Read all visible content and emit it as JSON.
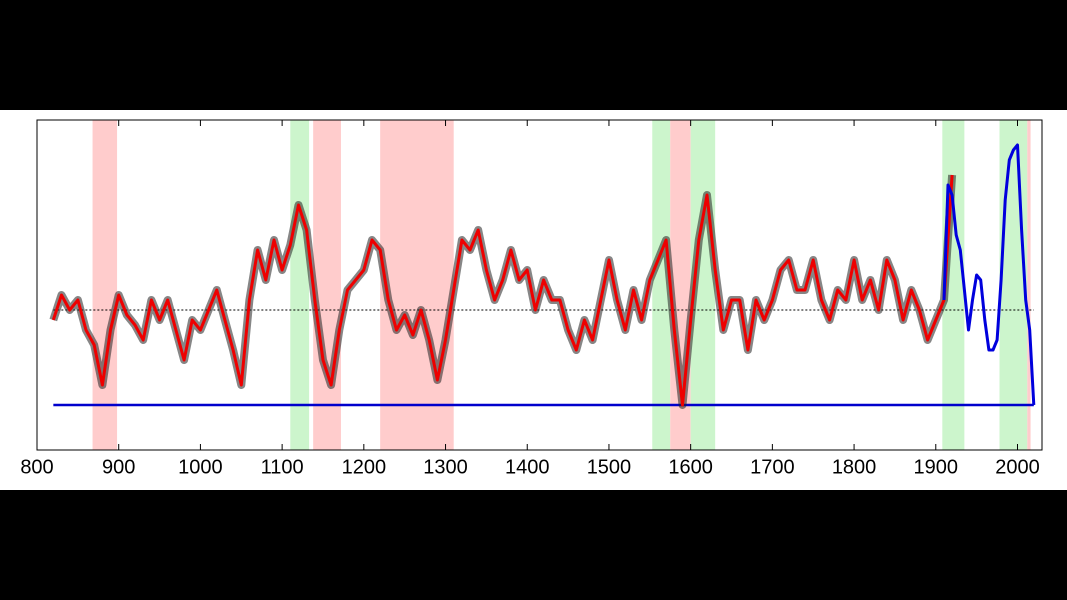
{
  "chart_data": {
    "type": "line",
    "xlim": [
      800,
      2030
    ],
    "ylim": [
      -2.8,
      3.8
    ],
    "xticks": [
      800,
      900,
      1000,
      1100,
      1200,
      1300,
      1400,
      1500,
      1600,
      1700,
      1800,
      1900,
      2000
    ],
    "spans": [
      {
        "start": 868,
        "end": 898,
        "color": "#ffcccc"
      },
      {
        "start": 1110,
        "end": 1133,
        "color": "#ccf5cc"
      },
      {
        "start": 1138,
        "end": 1172,
        "color": "#ffcccc"
      },
      {
        "start": 1220,
        "end": 1310,
        "color": "#ffcccc"
      },
      {
        "start": 1553,
        "end": 1575,
        "color": "#ccf5cc"
      },
      {
        "start": 1575,
        "end": 1600,
        "color": "#ffcccc"
      },
      {
        "start": 1600,
        "end": 1630,
        "color": "#ccf5cc"
      },
      {
        "start": 1908,
        "end": 1935,
        "color": "#ccf5cc"
      },
      {
        "start": 1978,
        "end": 2012,
        "color": "#ccf5cc"
      },
      {
        "start": 2012,
        "end": 2016,
        "color": "#ffcccc"
      }
    ],
    "hlines": [
      {
        "value": 0,
        "color": "#000000",
        "dashed": true
      },
      {
        "value": -1.9,
        "color": "#0000cc",
        "dashed": false
      }
    ],
    "series": [
      {
        "color": "#ee0000",
        "band": "#222222",
        "x": [
          820,
          830,
          840,
          850,
          860,
          870,
          880,
          890,
          900,
          910,
          920,
          930,
          940,
          950,
          960,
          970,
          980,
          990,
          1000,
          1010,
          1020,
          1030,
          1040,
          1050,
          1060,
          1070,
          1080,
          1090,
          1100,
          1110,
          1120,
          1130,
          1140,
          1150,
          1160,
          1170,
          1180,
          1190,
          1200,
          1210,
          1220,
          1230,
          1240,
          1250,
          1260,
          1270,
          1280,
          1290,
          1300,
          1310,
          1320,
          1330,
          1340,
          1350,
          1360,
          1370,
          1380,
          1390,
          1400,
          1410,
          1420,
          1430,
          1440,
          1450,
          1460,
          1470,
          1480,
          1490,
          1500,
          1510,
          1520,
          1530,
          1540,
          1550,
          1560,
          1570,
          1580,
          1590,
          1600,
          1610,
          1620,
          1630,
          1640,
          1650,
          1660,
          1670,
          1680,
          1690,
          1700,
          1710,
          1720,
          1730,
          1740,
          1750,
          1760,
          1770,
          1780,
          1790,
          1800,
          1810,
          1820,
          1830,
          1840,
          1850,
          1860,
          1870,
          1880,
          1890,
          1900,
          1910,
          1920
        ],
        "values": [
          -0.2,
          0.3,
          0,
          0.2,
          -0.4,
          -0.7,
          -1.5,
          -0.4,
          0.3,
          -0.1,
          -0.3,
          -0.6,
          0.2,
          -0.2,
          0.2,
          -0.4,
          -1.0,
          -0.2,
          -0.4,
          0,
          0.4,
          -0.2,
          -0.8,
          -1.5,
          0.2,
          1.2,
          0.6,
          1.4,
          0.8,
          1.3,
          2.1,
          1.6,
          0.2,
          -1.0,
          -1.5,
          -0.4,
          0.4,
          0.6,
          0.8,
          1.4,
          1.2,
          0.2,
          -0.4,
          -0.1,
          -0.5,
          0,
          -0.6,
          -1.4,
          -0.6,
          0.4,
          1.4,
          1.2,
          1.6,
          0.8,
          0.2,
          0.6,
          1.2,
          0.6,
          0.8,
          0,
          0.6,
          0.2,
          0.2,
          -0.4,
          -0.8,
          -0.2,
          -0.6,
          0.2,
          1.0,
          0.2,
          -0.4,
          0.4,
          -0.2,
          0.6,
          1.0,
          1.4,
          -0.4,
          -1.9,
          -0.2,
          1.4,
          2.3,
          0.8,
          -0.4,
          0.2,
          0.2,
          -0.8,
          0.2,
          -0.2,
          0.2,
          0.8,
          1.0,
          0.4,
          0.4,
          1.0,
          0.2,
          -0.2,
          0.4,
          0.2,
          1.0,
          0.2,
          0.6,
          0,
          1.0,
          0.6,
          -0.2,
          0.4,
          0,
          -0.6,
          -0.2,
          0.2,
          2.7
        ]
      },
      {
        "color": "#0000dd",
        "x": [
          1910,
          1915,
          1920,
          1925,
          1930,
          1940,
          1945,
          1950,
          1955,
          1960,
          1965,
          1970,
          1975,
          1980,
          1985,
          1990,
          1995,
          2000,
          2005,
          2010,
          2015,
          2020
        ],
        "values": [
          0.2,
          2.5,
          2.3,
          1.5,
          1.2,
          -0.4,
          0.2,
          0.7,
          0.6,
          -0.2,
          -0.8,
          -0.8,
          -0.6,
          0.6,
          2.2,
          3.0,
          3.2,
          3.3,
          1.6,
          0.2,
          -0.4,
          -1.9
        ]
      }
    ]
  }
}
